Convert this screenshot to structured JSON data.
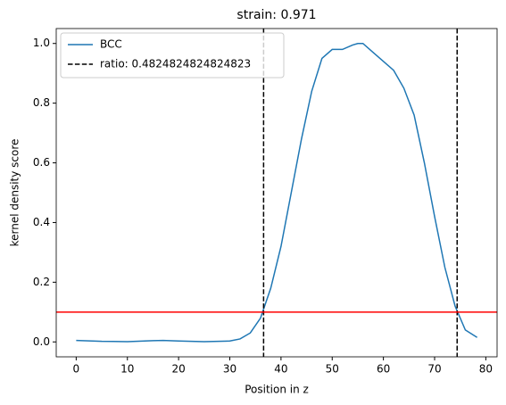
{
  "chart_data": {
    "type": "line",
    "title": "strain: 0.971",
    "x_label": "Position in z",
    "y_label": "kernel density score",
    "xlim": [
      -3.9,
      82.2
    ],
    "ylim": [
      -0.05,
      1.05
    ],
    "xticks": [
      0,
      10,
      20,
      30,
      40,
      50,
      60,
      70,
      80
    ],
    "yticks": [
      {
        "value": 0,
        "label": "0.0"
      },
      {
        "value": 0.2,
        "label": "0.2"
      },
      {
        "value": 0.4,
        "label": "0.4"
      },
      {
        "value": 0.6,
        "label": "0.6"
      },
      {
        "value": 0.8,
        "label": "0.8"
      },
      {
        "value": 1,
        "label": "1.0"
      }
    ],
    "legend": "upper left",
    "series": [
      {
        "name": "BCC",
        "color": "#1f77b4",
        "x": [
          0,
          5,
          10,
          15,
          17,
          20,
          25,
          30,
          32,
          34,
          36,
          38,
          40,
          42,
          44,
          46,
          48,
          50,
          52,
          54,
          55,
          56,
          58,
          60,
          62,
          64,
          66,
          68,
          70,
          72,
          74,
          76,
          78.3
        ],
        "values": [
          0.005,
          0.002,
          0.001,
          0.004,
          0.005,
          0.003,
          0.001,
          0.003,
          0.01,
          0.03,
          0.08,
          0.18,
          0.32,
          0.5,
          0.68,
          0.84,
          0.95,
          0.98,
          0.98,
          0.995,
          1.0,
          1.0,
          0.97,
          0.94,
          0.91,
          0.85,
          0.76,
          0.6,
          0.42,
          0.25,
          0.12,
          0.04,
          0.015
        ]
      }
    ],
    "vlines": {
      "name": "ratio: 0.4824824824824823",
      "color": "#000000",
      "values": [
        36.6,
        74.4
      ]
    },
    "hline": {
      "color": "#ff0000",
      "value": 0.1
    }
  }
}
